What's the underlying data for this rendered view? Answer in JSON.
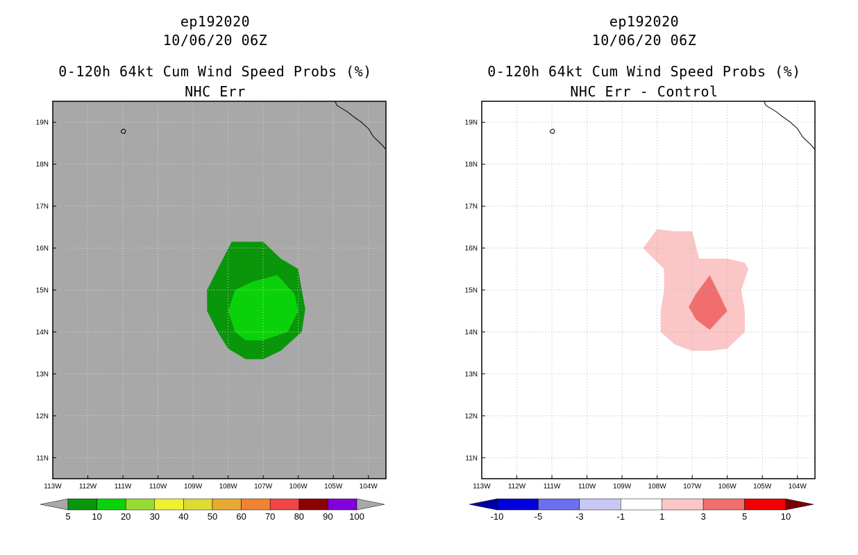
{
  "chart_data": [
    {
      "type": "map-contour",
      "storm": "ep192020",
      "date": "10/06/20 06Z",
      "title": "0-120h 64kt Cum Wind Speed Probs (%)",
      "subtitle": "NHC Err",
      "lon_ticks": [
        "113W",
        "112W",
        "111W",
        "110W",
        "109W",
        "108W",
        "107W",
        "106W",
        "105W",
        "104W"
      ],
      "lat_ticks": [
        "19N",
        "18N",
        "17N",
        "16N",
        "15N",
        "14N",
        "13N",
        "12N",
        "11N"
      ],
      "lon_range": [
        -113.0,
        -103.5
      ],
      "lat_range": [
        10.5,
        19.5
      ],
      "background": "#a8a8a8",
      "contours": [
        {
          "level": 5,
          "color": "#0a960a",
          "lonlat": [
            [
              -107.6,
              16.15
            ],
            [
              -107.0,
              16.15
            ],
            [
              -106.5,
              15.75
            ],
            [
              -106.0,
              15.5
            ],
            [
              -105.9,
              15.0
            ],
            [
              -105.8,
              14.55
            ],
            [
              -105.9,
              14.0
            ],
            [
              -106.5,
              13.55
            ],
            [
              -107.0,
              13.35
            ],
            [
              -107.5,
              13.35
            ],
            [
              -108.0,
              13.6
            ],
            [
              -108.3,
              14.0
            ],
            [
              -108.6,
              14.5
            ],
            [
              -108.6,
              15.0
            ],
            [
              -108.3,
              15.5
            ],
            [
              -107.9,
              16.15
            ]
          ]
        },
        {
          "level": 10,
          "color": "#0ad20a",
          "lonlat": [
            [
              -106.6,
              15.35
            ],
            [
              -106.1,
              14.9
            ],
            [
              -106.0,
              14.5
            ],
            [
              -106.3,
              14.0
            ],
            [
              -107.0,
              13.8
            ],
            [
              -107.5,
              13.8
            ],
            [
              -107.8,
              14.0
            ],
            [
              -108.0,
              14.5
            ],
            [
              -107.8,
              15.0
            ],
            [
              -107.3,
              15.2
            ]
          ]
        }
      ],
      "colorbar": {
        "labels": [
          "5",
          "10",
          "20",
          "30",
          "40",
          "50",
          "60",
          "70",
          "80",
          "90",
          "100"
        ],
        "colors": [
          "#0a960a",
          "#0ad20a",
          "#96dc32",
          "#f0f032",
          "#dcdc32",
          "#e6aa32",
          "#f08232",
          "#f04646",
          "#8c0000",
          "#8200dc"
        ],
        "end_low": "#a8a8a8",
        "end_high": "#a8a8a8"
      }
    },
    {
      "type": "map-contour",
      "storm": "ep192020",
      "date": "10/06/20 06Z",
      "title": "0-120h 64kt Cum Wind Speed Probs (%)",
      "subtitle": "NHC Err - Control",
      "lon_ticks": [
        "113W",
        "112W",
        "111W",
        "110W",
        "109W",
        "108W",
        "107W",
        "106W",
        "105W",
        "104W"
      ],
      "lat_ticks": [
        "19N",
        "18N",
        "17N",
        "16N",
        "15N",
        "14N",
        "13N",
        "12N",
        "11N"
      ],
      "lon_range": [
        -113.0,
        -103.5
      ],
      "lat_range": [
        10.5,
        19.5
      ],
      "background": "#ffffff",
      "contours": [
        {
          "level": 1,
          "color": "#fac6c6",
          "lonlat": [
            [
              -108.0,
              16.45
            ],
            [
              -107.5,
              16.4
            ],
            [
              -107.0,
              16.4
            ],
            [
              -106.8,
              15.75
            ],
            [
              -106.0,
              15.75
            ],
            [
              -105.5,
              15.65
            ],
            [
              -105.4,
              15.5
            ],
            [
              -105.6,
              15.0
            ],
            [
              -105.5,
              14.5
            ],
            [
              -105.5,
              14.0
            ],
            [
              -106.0,
              13.6
            ],
            [
              -106.5,
              13.55
            ],
            [
              -107.0,
              13.55
            ],
            [
              -107.5,
              13.7
            ],
            [
              -107.9,
              14.0
            ],
            [
              -107.9,
              14.5
            ],
            [
              -107.8,
              15.0
            ],
            [
              -107.8,
              15.5
            ],
            [
              -108.4,
              16.0
            ]
          ]
        },
        {
          "level": 3,
          "color": "#f06e6e",
          "lonlat": [
            [
              -106.5,
              15.35
            ],
            [
              -106.2,
              14.85
            ],
            [
              -106.0,
              14.5
            ],
            [
              -106.5,
              14.05
            ],
            [
              -106.9,
              14.3
            ],
            [
              -107.1,
              14.6
            ],
            [
              -106.9,
              14.9
            ]
          ]
        }
      ],
      "colorbar": {
        "labels": [
          "-10",
          "-5",
          "-3",
          "-1",
          "1",
          "3",
          "5",
          "10"
        ],
        "colors": [
          "#0000dc",
          "#6e6ef0",
          "#c8c8f5",
          "#ffffff",
          "#fac6c6",
          "#f06e6e",
          "#f00000"
        ],
        "end_low": "#0000a0",
        "end_high": "#780000"
      }
    }
  ]
}
